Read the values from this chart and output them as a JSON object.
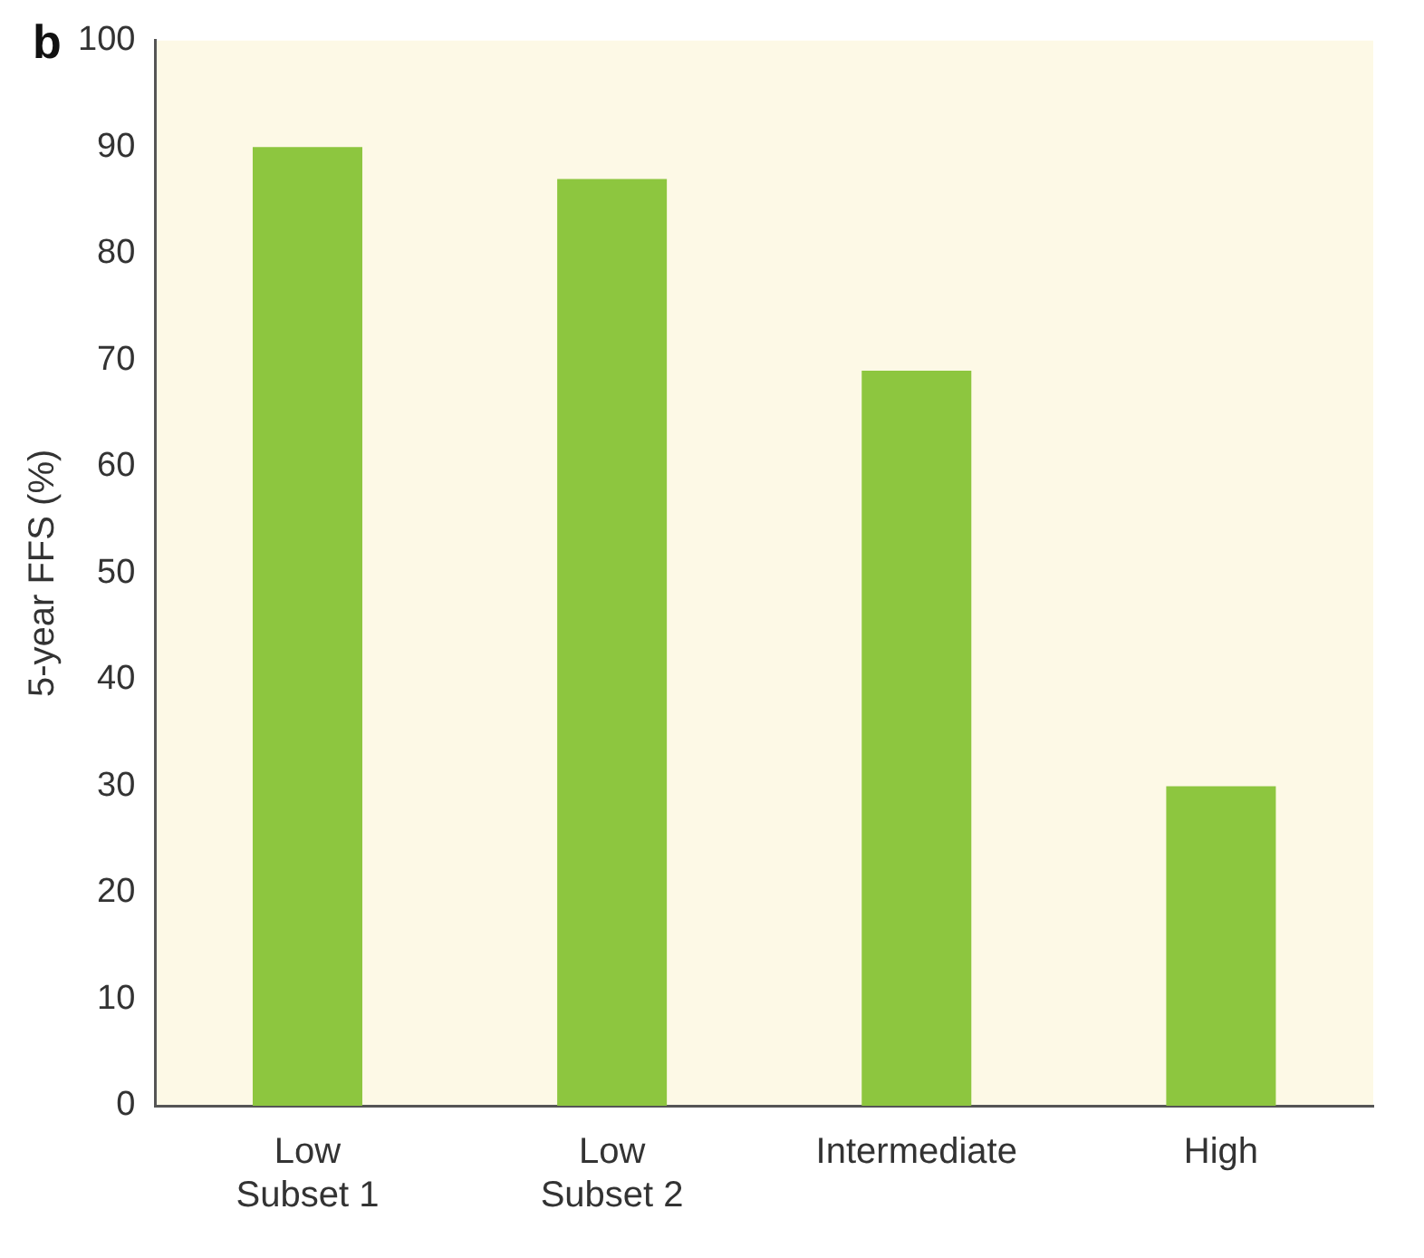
{
  "chart_data": {
    "type": "bar",
    "ylabel": "5-year FFS (%)",
    "annotations": [
      "b"
    ],
    "categories": [
      "Low\nSubset 1",
      "Low\nSubset 2",
      "Intermediate",
      "High"
    ],
    "values": [
      90,
      87,
      69,
      30
    ],
    "color": "#8dc63f",
    "ylim": [
      0,
      100
    ],
    "yticks": [
      0,
      10,
      20,
      30,
      40,
      50,
      60,
      70,
      80,
      90,
      100
    ],
    "grid": false,
    "legend": false
  }
}
